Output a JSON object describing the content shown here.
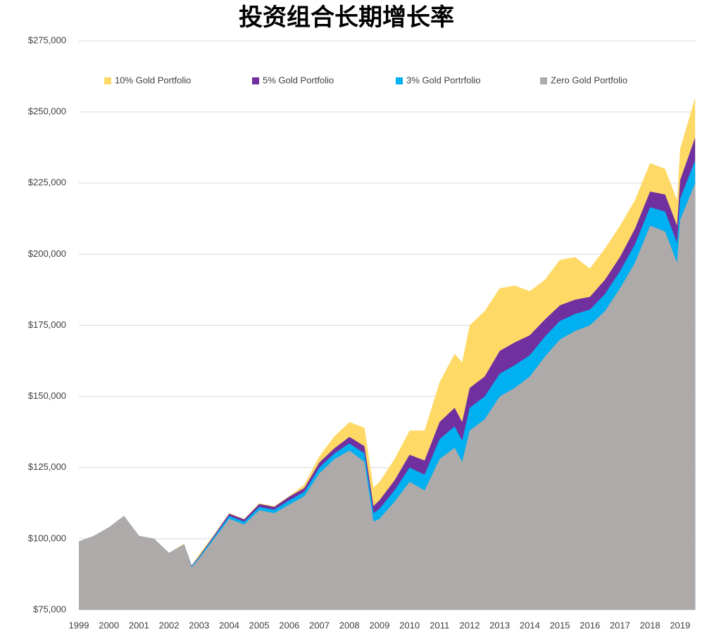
{
  "chart_data": {
    "type": "area",
    "title": "投资组合长期增长率",
    "x": [
      1999,
      1999.5,
      2000,
      2000.5,
      2001,
      2001.5,
      2002,
      2002.5,
      2002.75,
      2003,
      2003.5,
      2004,
      2004.5,
      2005,
      2005.5,
      2006,
      2006.5,
      2007,
      2007.5,
      2008,
      2008.5,
      2008.8,
      2009,
      2009.5,
      2010,
      2010.5,
      2011,
      2011.5,
      2011.75,
      2012,
      2012.5,
      2013,
      2013.5,
      2014,
      2014.5,
      2015,
      2015.5,
      2016,
      2016.5,
      2017,
      2017.5,
      2018,
      2018.5,
      2018.9,
      2019,
      2019.5
    ],
    "series": [
      {
        "name": "10% Gold Portfolio",
        "color": "#ffd966",
        "values": [
          99000,
          101000,
          104000,
          108000,
          101000,
          100000,
          95000,
          98300,
          90500,
          94500,
          101500,
          109000,
          107000,
          112500,
          111500,
          115000,
          119000,
          129000,
          136000,
          141000,
          139000,
          118000,
          120000,
          128000,
          138000,
          138000,
          155000,
          165000,
          162000,
          175000,
          180000,
          188000,
          189000,
          187000,
          191000,
          198000,
          199000,
          195000,
          202000,
          210000,
          219000,
          232000,
          230000,
          219000,
          237000,
          255000
        ]
      },
      {
        "name": "5% Gold Portfolio",
        "color": "#7030a0",
        "values": [
          99000,
          101000,
          104000,
          108000,
          101000,
          100000,
          95000,
          98000,
          90500,
          93800,
          101200,
          108800,
          106800,
          112200,
          111200,
          114800,
          117800,
          126800,
          131800,
          135800,
          132500,
          111500,
          113500,
          120500,
          129500,
          127500,
          141000,
          146000,
          141000,
          153000,
          157000,
          166000,
          169000,
          171500,
          177000,
          182000,
          184000,
          185000,
          191000,
          199000,
          209000,
          222000,
          221000,
          210000,
          226000,
          241000
        ]
      },
      {
        "name": "3% Gold Portrfolio",
        "color": "#00b0f0",
        "values": [
          99000,
          101000,
          104000,
          108000,
          101000,
          100000,
          95000,
          98000,
          90300,
          93500,
          100700,
          108000,
          106000,
          111200,
          110200,
          113500,
          116500,
          125000,
          130000,
          133500,
          130000,
          109000,
          110500,
          117000,
          125000,
          122500,
          135000,
          139500,
          134500,
          146000,
          150000,
          158000,
          161000,
          164500,
          171000,
          176500,
          179000,
          180500,
          186000,
          194000,
          203500,
          216500,
          215000,
          204000,
          219500,
          233000
        ]
      },
      {
        "name": "Zero Gold Portfolio",
        "color": "#aeaaaa",
        "values": [
          99000,
          101000,
          104000,
          108000,
          101000,
          100000,
          95000,
          98000,
          90000,
          93000,
          100000,
          107000,
          105000,
          110000,
          109000,
          112000,
          115000,
          123000,
          128000,
          131000,
          127000,
          106000,
          107000,
          113000,
          120000,
          117000,
          128000,
          132000,
          127000,
          138000,
          142000,
          150000,
          153000,
          157000,
          164000,
          170000,
          173000,
          175000,
          180000,
          188000,
          197000,
          210000,
          208000,
          197000,
          212000,
          225000
        ]
      }
    ],
    "xlim": [
      1999,
      2019.52
    ],
    "xticks": [
      1999,
      2000,
      2001,
      2002,
      2003,
      2004,
      2005,
      2006,
      2007,
      2008,
      2009,
      2010,
      2011,
      2012,
      2013,
      2014,
      2015,
      2016,
      2017,
      2018,
      2019
    ],
    "ylim": [
      75000,
      275000
    ],
    "yticks": [
      {
        "value": 75000,
        "label": "$75,000"
      },
      {
        "value": 100000,
        "label": "$100,000"
      },
      {
        "value": 125000,
        "label": "$125,000"
      },
      {
        "value": 150000,
        "label": "$150,000"
      },
      {
        "value": 175000,
        "label": "$175,000"
      },
      {
        "value": 200000,
        "label": "$200,000"
      },
      {
        "value": 225000,
        "label": "$225,000"
      },
      {
        "value": 250000,
        "label": "$250,000"
      },
      {
        "value": 275000,
        "label": "$275,000"
      }
    ],
    "grid": true,
    "legend": "top"
  }
}
